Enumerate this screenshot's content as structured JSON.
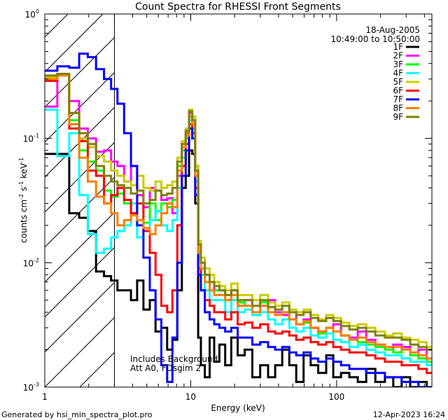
{
  "chart_data": {
    "type": "line",
    "title": "Count Spectra for RHESSI Front Segments",
    "xlabel": "Energy (keV)",
    "ylabel_main": "counts cm",
    "ylabel_sup1": "-2",
    "ylabel_mid1": " s",
    "ylabel_sup2": "-1",
    "ylabel_mid2": " keV",
    "ylabel_sup3": "-1",
    "xscale": "log",
    "yscale": "log",
    "xlim": [
      1.0,
      450
    ],
    "ylim": [
      0.001,
      1.0
    ],
    "x_ticks": [
      {
        "value": 1,
        "label": "1"
      },
      {
        "value": 10,
        "label": "10"
      },
      {
        "value": 100,
        "label": "100"
      }
    ],
    "y_ticks": [
      {
        "value": 0.001,
        "base": "10",
        "exp": "-3"
      },
      {
        "value": 0.01,
        "base": "10",
        "exp": "-2"
      },
      {
        "value": 0.1,
        "base": "10",
        "exp": "-1"
      },
      {
        "value": 1.0,
        "base": "10",
        "exp": "0"
      }
    ],
    "date": "18-Aug-2005",
    "time_range": "10:49:00 to 10:50:00",
    "threshold_keV": 3.0,
    "annotation_line1": "Includes Background",
    "annotation_line2": "Att A0, FDsgim 2",
    "energy_bins": [
      1.1,
      1.35,
      1.6,
      1.85,
      2.1,
      2.4,
      2.7,
      3.0,
      3.3,
      3.7,
      4.1,
      4.5,
      5.0,
      5.5,
      6.0,
      6.6,
      7.2,
      7.8,
      8.4,
      9.0,
      9.5,
      10.0,
      10.5,
      11.0,
      11.5,
      12.0,
      13,
      14,
      15,
      16.5,
      18,
      20,
      22,
      25,
      28,
      32,
      36,
      40,
      45,
      50,
      56,
      63,
      70,
      80,
      90,
      100,
      115,
      130,
      150,
      170,
      200,
      230,
      260,
      300,
      340,
      390,
      440
    ],
    "series": [
      {
        "name": "1F",
        "color": "#000000",
        "values": [
          0.075,
          0.075,
          0.025,
          0.023,
          0.018,
          0.0085,
          0.0078,
          0.0072,
          0.006,
          0.006,
          0.005,
          0.0072,
          0.0042,
          0.005,
          0.0028,
          0.003,
          0.002,
          0.0024,
          0.006,
          0.04,
          0.05,
          0.08,
          0.075,
          0.03,
          0.0025,
          0.0015,
          0.0012,
          0.0025,
          0.0016,
          0.0022,
          0.0015,
          0.0025,
          0.0018,
          0.002,
          0.0012,
          0.0015,
          0.0012,
          0.0015,
          0.002,
          0.0015,
          0.0011,
          0.0018,
          0.0015,
          0.0013,
          0.0018,
          0.0012,
          0.0013,
          0.0012,
          0.0011,
          0.0014,
          0.0011,
          0.0012,
          0.001,
          0.0012,
          0.001,
          0.0011,
          0.001
        ]
      },
      {
        "name": "2F",
        "color": "#ff00ff",
        "values": [
          0.18,
          0.33,
          0.2,
          0.12,
          0.1,
          0.078,
          0.08,
          0.065,
          0.06,
          0.045,
          0.06,
          0.035,
          0.028,
          0.04,
          0.038,
          0.032,
          0.033,
          0.025,
          0.05,
          0.09,
          0.11,
          0.16,
          0.14,
          0.06,
          0.015,
          0.01,
          0.008,
          0.007,
          0.006,
          0.006,
          0.005,
          0.006,
          0.0045,
          0.005,
          0.004,
          0.0045,
          0.005,
          0.004,
          0.0038,
          0.004,
          0.0032,
          0.0035,
          0.003,
          0.0028,
          0.003,
          0.0032,
          0.0026,
          0.0025,
          0.0028,
          0.0024,
          0.0022,
          0.002,
          0.0022,
          0.0021,
          0.0019,
          0.002,
          0.0017
        ]
      },
      {
        "name": "3F",
        "color": "#00ff00",
        "values": [
          0.3,
          0.33,
          0.14,
          0.08,
          0.065,
          0.055,
          0.038,
          0.034,
          0.036,
          0.03,
          0.025,
          0.03,
          0.021,
          0.03,
          0.022,
          0.03,
          0.028,
          0.032,
          0.06,
          0.08,
          0.1,
          0.15,
          0.13,
          0.05,
          0.012,
          0.009,
          0.007,
          0.006,
          0.006,
          0.006,
          0.005,
          0.005,
          0.0048,
          0.0045,
          0.004,
          0.0048,
          0.004,
          0.0038,
          0.004,
          0.0035,
          0.0032,
          0.0033,
          0.003,
          0.0027,
          0.003,
          0.0028,
          0.0026,
          0.0024,
          0.0023,
          0.0022,
          0.0021,
          0.002,
          0.0019,
          0.002,
          0.0018,
          0.0017,
          0.0016
        ]
      },
      {
        "name": "4F",
        "color": "#00ffff",
        "values": [
          0.17,
          0.072,
          0.11,
          0.035,
          0.017,
          0.012,
          0.013,
          0.016,
          0.018,
          0.02,
          0.03,
          0.016,
          0.018,
          0.022,
          0.026,
          0.02,
          0.018,
          0.022,
          0.04,
          0.07,
          0.09,
          0.14,
          0.12,
          0.045,
          0.011,
          0.008,
          0.006,
          0.005,
          0.005,
          0.005,
          0.004,
          0.005,
          0.004,
          0.0042,
          0.0038,
          0.004,
          0.0035,
          0.0032,
          0.0035,
          0.003,
          0.0028,
          0.003,
          0.0026,
          0.0025,
          0.0027,
          0.0024,
          0.0023,
          0.0021,
          0.0022,
          0.002,
          0.0019,
          0.0018,
          0.0018,
          0.0017,
          0.0016,
          0.0016,
          0.0015
        ]
      },
      {
        "name": "5F",
        "color": "#cccc00",
        "values": [
          0.31,
          0.33,
          0.16,
          0.1,
          0.085,
          0.072,
          0.065,
          0.055,
          0.05,
          0.045,
          0.042,
          0.05,
          0.04,
          0.038,
          0.045,
          0.04,
          0.042,
          0.045,
          0.07,
          0.095,
          0.12,
          0.17,
          0.15,
          0.06,
          0.015,
          0.011,
          0.009,
          0.008,
          0.007,
          0.0065,
          0.006,
          0.0068,
          0.0055,
          0.0055,
          0.005,
          0.0055,
          0.0048,
          0.0045,
          0.0048,
          0.0042,
          0.004,
          0.0042,
          0.0038,
          0.0035,
          0.0038,
          0.0036,
          0.0033,
          0.0031,
          0.0032,
          0.003,
          0.0028,
          0.0026,
          0.0027,
          0.0025,
          0.0024,
          0.0023,
          0.0021
        ]
      },
      {
        "name": "6F",
        "color": "#ff0000",
        "values": [
          0.29,
          0.33,
          0.12,
          0.095,
          0.055,
          0.05,
          0.03,
          0.035,
          0.04,
          0.032,
          0.025,
          0.03,
          0.018,
          0.012,
          0.008,
          0.0045,
          0.004,
          0.006,
          0.02,
          0.06,
          0.09,
          0.13,
          0.11,
          0.04,
          0.009,
          0.006,
          0.005,
          0.0045,
          0.004,
          0.004,
          0.0035,
          0.004,
          0.0032,
          0.0033,
          0.003,
          0.0032,
          0.0028,
          0.0027,
          0.0028,
          0.0026,
          0.0024,
          0.0025,
          0.0023,
          0.0022,
          0.0023,
          0.0021,
          0.002,
          0.0019,
          0.0019,
          0.0018,
          0.0017,
          0.0016,
          0.0016,
          0.0015,
          0.0015,
          0.0014,
          0.0013
        ]
      },
      {
        "name": "7F",
        "color": "#0000ff",
        "values": [
          0.35,
          0.38,
          0.37,
          0.48,
          0.45,
          0.36,
          0.3,
          0.25,
          0.19,
          0.11,
          0.06,
          0.02,
          0.011,
          0.006,
          0.0035,
          0.0015,
          0.0011,
          0.0025,
          0.01,
          0.05,
          0.08,
          0.12,
          0.1,
          0.035,
          0.008,
          0.006,
          0.004,
          0.0035,
          0.0032,
          0.003,
          0.0028,
          0.003,
          0.0025,
          0.0025,
          0.0022,
          0.0023,
          0.0021,
          0.002,
          0.0021,
          0.0019,
          0.0018,
          0.0019,
          0.0017,
          0.0016,
          0.0017,
          0.0016,
          0.0015,
          0.0014,
          0.0014,
          0.0013,
          0.0013,
          0.0012,
          0.0012,
          0.0011,
          0.0011,
          0.001,
          0.001
        ]
      },
      {
        "name": "8F",
        "color": "#ff7f00",
        "values": [
          0.3,
          0.32,
          0.13,
          0.07,
          0.045,
          0.034,
          0.03,
          0.025,
          0.02,
          0.022,
          0.024,
          0.022,
          0.019,
          0.017,
          0.02,
          0.025,
          0.03,
          0.028,
          0.055,
          0.085,
          0.105,
          0.15,
          0.13,
          0.05,
          0.012,
          0.009,
          0.007,
          0.006,
          0.0055,
          0.0055,
          0.005,
          0.0055,
          0.0045,
          0.0045,
          0.004,
          0.0045,
          0.004,
          0.0038,
          0.004,
          0.0035,
          0.0032,
          0.0034,
          0.003,
          0.0028,
          0.003,
          0.0028,
          0.0026,
          0.0024,
          0.0025,
          0.0023,
          0.0022,
          0.0021,
          0.0021,
          0.002,
          0.0019,
          0.0018,
          0.0017
        ]
      },
      {
        "name": "9F",
        "color": "#808000",
        "values": [
          0.32,
          0.33,
          0.16,
          0.11,
          0.09,
          0.06,
          0.05,
          0.045,
          0.042,
          0.04,
          0.036,
          0.038,
          0.03,
          0.032,
          0.038,
          0.035,
          0.036,
          0.04,
          0.065,
          0.09,
          0.115,
          0.165,
          0.14,
          0.055,
          0.014,
          0.01,
          0.008,
          0.007,
          0.0065,
          0.006,
          0.0055,
          0.006,
          0.005,
          0.005,
          0.0045,
          0.005,
          0.0044,
          0.0042,
          0.0045,
          0.004,
          0.0038,
          0.004,
          0.0036,
          0.0034,
          0.0036,
          0.0034,
          0.0031,
          0.0029,
          0.003,
          0.0028,
          0.0026,
          0.0025,
          0.0025,
          0.0024,
          0.0022,
          0.0021,
          0.002
        ]
      }
    ]
  },
  "footer": {
    "generated_by": "Generated by  hsi_min_spectra_plot.pro",
    "timestamp": "12-Apr-2023 16:24"
  }
}
